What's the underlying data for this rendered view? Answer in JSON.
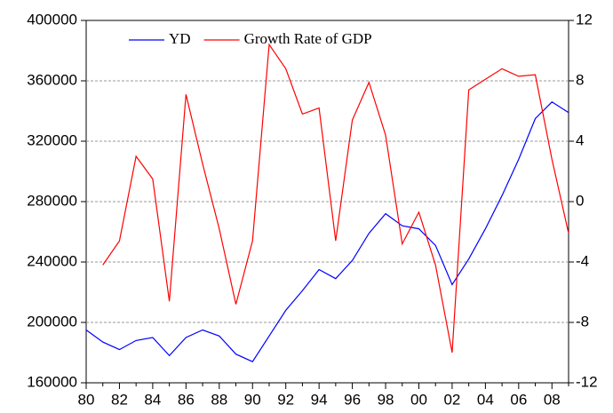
{
  "chart_data": {
    "type": "line",
    "categories": [
      "80",
      null,
      "82",
      null,
      "84",
      null,
      "86",
      null,
      "88",
      null,
      "90",
      null,
      "92",
      null,
      "94",
      null,
      "96",
      null,
      "98",
      null,
      "00",
      null,
      "02",
      null,
      "04",
      null,
      "06",
      null,
      "08",
      null
    ],
    "series": [
      {
        "name": "YD",
        "color": "#0000ff",
        "values": [
          195000,
          187000,
          182000,
          188000,
          190000,
          178000,
          190000,
          195000,
          191000,
          179000,
          174000,
          191000,
          208000,
          221000,
          235000,
          229000,
          241000,
          259000,
          272000,
          264000,
          262000,
          251000,
          225000,
          242000,
          262000,
          284000,
          308000,
          335000,
          346000,
          339000
        ]
      },
      {
        "name": "Growth Rate of GDP",
        "color": "#ff0000",
        "axis": "y2",
        "values": [
          null,
          -4.2,
          -2.6,
          3.0,
          1.5,
          -6.6,
          7.1,
          2.5,
          -1.8,
          -6.8,
          -2.6,
          10.4,
          8.8,
          5.8,
          6.2,
          -2.6,
          5.4,
          7.9,
          4.4,
          -2.8,
          -0.7,
          -4.2,
          -10.0,
          7.4,
          8.1,
          8.8,
          8.3,
          8.4,
          2.8,
          -2.1
        ]
      }
    ],
    "ylim": [
      160000,
      400000
    ],
    "yticks": [
      160000,
      200000,
      240000,
      280000,
      320000,
      360000,
      400000
    ],
    "y2lim": [
      -12,
      12
    ],
    "y2ticks": [
      -12,
      -8,
      -4,
      0,
      4,
      8,
      12
    ],
    "grid": true,
    "legend": "upper left"
  }
}
